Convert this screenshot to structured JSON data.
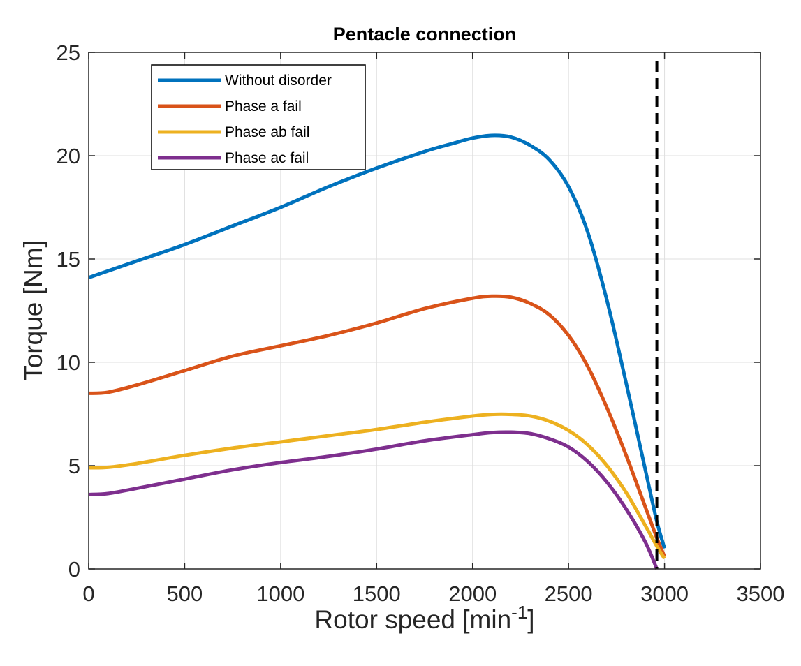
{
  "chart_data": {
    "type": "line",
    "title": "Pentacle connection",
    "xlabel": "Rotor speed [min",
    "xlabel_superscript": "-1",
    "xlabel_suffix": "]",
    "ylabel": "Torque [Nm]",
    "xlim": [
      0,
      3500
    ],
    "ylim": [
      0,
      25
    ],
    "xticks": [
      0,
      500,
      1000,
      1500,
      2000,
      2500,
      3000,
      3500
    ],
    "yticks": [
      0,
      5,
      10,
      15,
      20,
      25
    ],
    "xtick_labels": [
      "0",
      "500",
      "1000",
      "1500",
      "2000",
      "2500",
      "3000",
      "3500"
    ],
    "ytick_labels": [
      "0",
      "5",
      "10",
      "15",
      "20",
      "25"
    ],
    "grid": true,
    "legend_position": "top-left",
    "vertical_line": {
      "x": 2960,
      "style": "dashed",
      "color": "#000000"
    },
    "series": [
      {
        "name": "Without disorder",
        "color": "#0072BD",
        "x": [
          0,
          250,
          500,
          750,
          1000,
          1250,
          1500,
          1750,
          1900,
          2000,
          2100,
          2200,
          2300,
          2400,
          2500,
          2600,
          2700,
          2800,
          2900,
          2960,
          3000
        ],
        "y": [
          14.1,
          14.9,
          15.7,
          16.6,
          17.5,
          18.5,
          19.4,
          20.2,
          20.6,
          20.85,
          20.98,
          20.9,
          20.5,
          19.8,
          18.5,
          16.3,
          13.0,
          9.0,
          4.8,
          2.3,
          1.0
        ]
      },
      {
        "name": "Phase a fail",
        "color": "#D95319",
        "x": [
          0,
          100,
          250,
          500,
          750,
          1000,
          1250,
          1500,
          1750,
          2000,
          2100,
          2200,
          2300,
          2400,
          2500,
          2600,
          2700,
          2800,
          2900,
          2960,
          3000
        ],
        "y": [
          8.5,
          8.55,
          8.9,
          9.6,
          10.3,
          10.8,
          11.3,
          11.9,
          12.6,
          13.1,
          13.2,
          13.15,
          12.85,
          12.3,
          11.3,
          9.8,
          7.8,
          5.5,
          3.0,
          1.5,
          0.6
        ]
      },
      {
        "name": "Phase ab fail",
        "color": "#EDB120",
        "x": [
          0,
          100,
          250,
          500,
          750,
          1000,
          1250,
          1500,
          1750,
          2000,
          2100,
          2200,
          2300,
          2400,
          2500,
          2600,
          2700,
          2800,
          2900,
          2960,
          3000
        ],
        "y": [
          4.9,
          4.92,
          5.1,
          5.5,
          5.85,
          6.15,
          6.45,
          6.75,
          7.1,
          7.4,
          7.48,
          7.48,
          7.4,
          7.15,
          6.7,
          6.0,
          5.0,
          3.7,
          2.1,
          1.1,
          0.5
        ]
      },
      {
        "name": "Phase ac fail",
        "color": "#7E2F8E",
        "x": [
          0,
          100,
          250,
          500,
          750,
          1000,
          1250,
          1500,
          1750,
          2000,
          2100,
          2200,
          2300,
          2400,
          2500,
          2600,
          2700,
          2800,
          2900,
          2960
        ],
        "y": [
          3.6,
          3.65,
          3.9,
          4.35,
          4.8,
          5.15,
          5.45,
          5.8,
          6.2,
          6.5,
          6.6,
          6.62,
          6.55,
          6.3,
          5.9,
          5.2,
          4.2,
          2.9,
          1.3,
          0.0
        ]
      }
    ]
  }
}
